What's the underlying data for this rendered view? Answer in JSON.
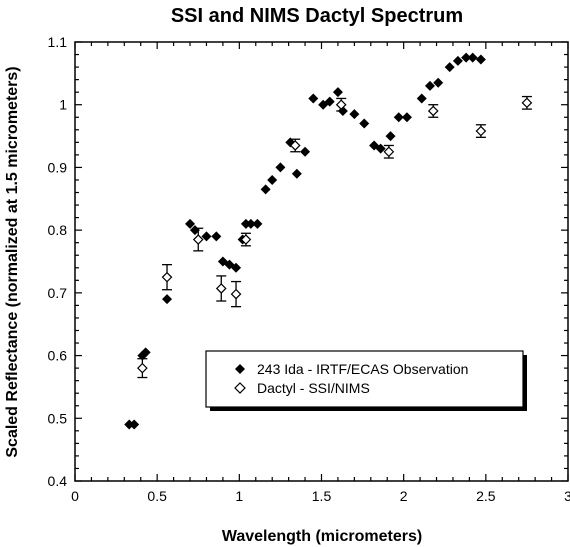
{
  "chart_data": {
    "type": "scatter",
    "title": "SSI and NIMS Dactyl Spectrum",
    "xlabel": "Wavelength (micrometers)",
    "ylabel": "Scaled Reflectance (normalized at 1.5 micrometers)",
    "xlim": [
      0,
      3
    ],
    "ylim": [
      0.4,
      1.1
    ],
    "x_ticks": [
      0,
      0.5,
      1,
      1.5,
      2,
      2.5,
      3
    ],
    "x_tick_labels": [
      "0",
      "0.5",
      "1",
      "1.5",
      "2",
      "2.5",
      "3"
    ],
    "y_ticks": [
      0.4,
      0.5,
      0.6,
      0.7,
      0.8,
      0.9,
      1.0,
      1.1
    ],
    "y_tick_labels": [
      "0.4",
      "0.5",
      "0.6",
      "0.7",
      "0.8",
      "0.9",
      "1",
      "1.1"
    ],
    "grid": false,
    "legend_position": "lower-right",
    "series": [
      {
        "name": "243 Ida - IRTF/ECAS Observation",
        "marker": "filled-diamond",
        "color": "#000000",
        "points": [
          [
            0.33,
            0.49
          ],
          [
            0.36,
            0.49
          ],
          [
            0.41,
            0.6
          ],
          [
            0.43,
            0.605
          ],
          [
            0.56,
            0.69
          ],
          [
            0.7,
            0.81
          ],
          [
            0.73,
            0.8
          ],
          [
            0.8,
            0.79
          ],
          [
            0.86,
            0.79
          ],
          [
            0.9,
            0.75
          ],
          [
            0.94,
            0.745
          ],
          [
            0.98,
            0.74
          ],
          [
            1.02,
            0.785
          ],
          [
            1.04,
            0.81
          ],
          [
            1.07,
            0.81
          ],
          [
            1.11,
            0.81
          ],
          [
            1.16,
            0.865
          ],
          [
            1.2,
            0.88
          ],
          [
            1.25,
            0.9
          ],
          [
            1.31,
            0.94
          ],
          [
            1.35,
            0.89
          ],
          [
            1.4,
            0.925
          ],
          [
            1.45,
            1.01
          ],
          [
            1.51,
            1.0
          ],
          [
            1.55,
            1.005
          ],
          [
            1.6,
            1.02
          ],
          [
            1.63,
            0.99
          ],
          [
            1.7,
            0.985
          ],
          [
            1.76,
            0.97
          ],
          [
            1.82,
            0.935
          ],
          [
            1.86,
            0.93
          ],
          [
            1.92,
            0.95
          ],
          [
            1.97,
            0.98
          ],
          [
            2.02,
            0.98
          ],
          [
            2.11,
            1.01
          ],
          [
            2.16,
            1.03
          ],
          [
            2.21,
            1.035
          ],
          [
            2.28,
            1.06
          ],
          [
            2.33,
            1.07
          ],
          [
            2.38,
            1.075
          ],
          [
            2.42,
            1.075
          ],
          [
            2.47,
            1.072
          ]
        ]
      },
      {
        "name": "Dactyl - SSI/NIMS",
        "marker": "open-diamond",
        "color": "#000000",
        "points": [
          {
            "x": 0.41,
            "y": 0.58,
            "err": 0.015
          },
          {
            "x": 0.56,
            "y": 0.725,
            "err": 0.02
          },
          {
            "x": 0.75,
            "y": 0.785,
            "err": 0.018
          },
          {
            "x": 0.89,
            "y": 0.707,
            "err": 0.02
          },
          {
            "x": 0.98,
            "y": 0.698,
            "err": 0.02
          },
          {
            "x": 1.04,
            "y": 0.785,
            "err": 0.01
          },
          {
            "x": 1.34,
            "y": 0.935,
            "err": 0.01
          },
          {
            "x": 1.62,
            "y": 1.0,
            "err": 0.01
          },
          {
            "x": 1.91,
            "y": 0.925,
            "err": 0.01
          },
          {
            "x": 2.18,
            "y": 0.99,
            "err": 0.01
          },
          {
            "x": 2.47,
            "y": 0.958,
            "err": 0.01
          },
          {
            "x": 2.75,
            "y": 1.003,
            "err": 0.01
          }
        ]
      }
    ]
  }
}
